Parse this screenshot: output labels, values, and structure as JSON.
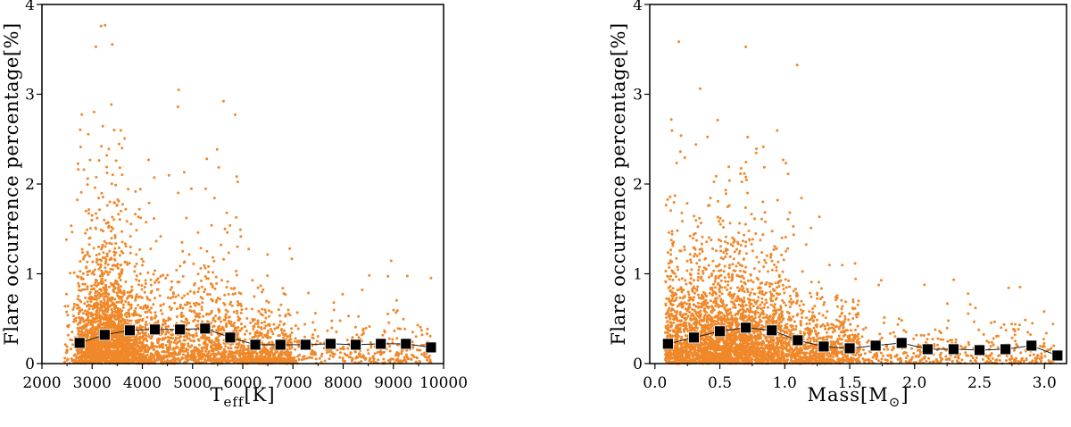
{
  "chart_data": [
    {
      "type": "scatter",
      "title": "",
      "xlabel_main": "T",
      "xlabel_sub": "eff",
      "xlabel_unit": "[K]",
      "ylabel": "Flare occurrence percentage[%]",
      "xlim": [
        2000,
        10000
      ],
      "ylim": [
        0,
        4
      ],
      "xticks": [
        2000,
        3000,
        4000,
        5000,
        6000,
        7000,
        8000,
        9000,
        10000
      ],
      "xtick_labels": [
        "2000",
        "3000",
        "4000",
        "5000",
        "6000",
        "7000",
        "8000",
        "9000",
        "10000"
      ],
      "yticks": [
        0,
        1,
        2,
        3,
        4
      ],
      "ytick_labels": [
        "0",
        "1",
        "2",
        "3",
        "4"
      ],
      "scatter_color": "#f0882a",
      "binned_mean": {
        "x": [
          2750,
          3250,
          3750,
          4250,
          4750,
          5250,
          5750,
          6250,
          6750,
          7250,
          7750,
          8250,
          8750,
          9250,
          9750
        ],
        "y": [
          0.23,
          0.32,
          0.37,
          0.38,
          0.38,
          0.39,
          0.29,
          0.21,
          0.21,
          0.21,
          0.22,
          0.21,
          0.22,
          0.22,
          0.18
        ]
      }
    },
    {
      "type": "scatter",
      "title": "",
      "xlabel_main": "Mass[M",
      "xlabel_sub": "⊙",
      "xlabel_unit": "]",
      "ylabel": "Flare occurrence percentage[%]",
      "xlim": [
        -0.04,
        3.17
      ],
      "ylim": [
        0,
        4
      ],
      "xticks": [
        0,
        0.5,
        1,
        1.5,
        2,
        2.5,
        3
      ],
      "xtick_labels": [
        "0.0",
        "0.5",
        "1.0",
        "1.5",
        "2.0",
        "2.5",
        "3.0"
      ],
      "yticks": [
        0,
        1,
        2,
        3,
        4
      ],
      "ytick_labels": [
        "0",
        "1",
        "2",
        "3",
        "4"
      ],
      "scatter_color": "#f0882a",
      "binned_mean": {
        "x": [
          0.1,
          0.3,
          0.5,
          0.7,
          0.9,
          1.1,
          1.3,
          1.5,
          1.7,
          1.9,
          2.1,
          2.3,
          2.5,
          2.7,
          2.9,
          3.1
        ],
        "y": [
          0.22,
          0.29,
          0.36,
          0.4,
          0.37,
          0.26,
          0.19,
          0.17,
          0.2,
          0.23,
          0.16,
          0.16,
          0.15,
          0.16,
          0.2,
          0.09
        ]
      }
    }
  ]
}
